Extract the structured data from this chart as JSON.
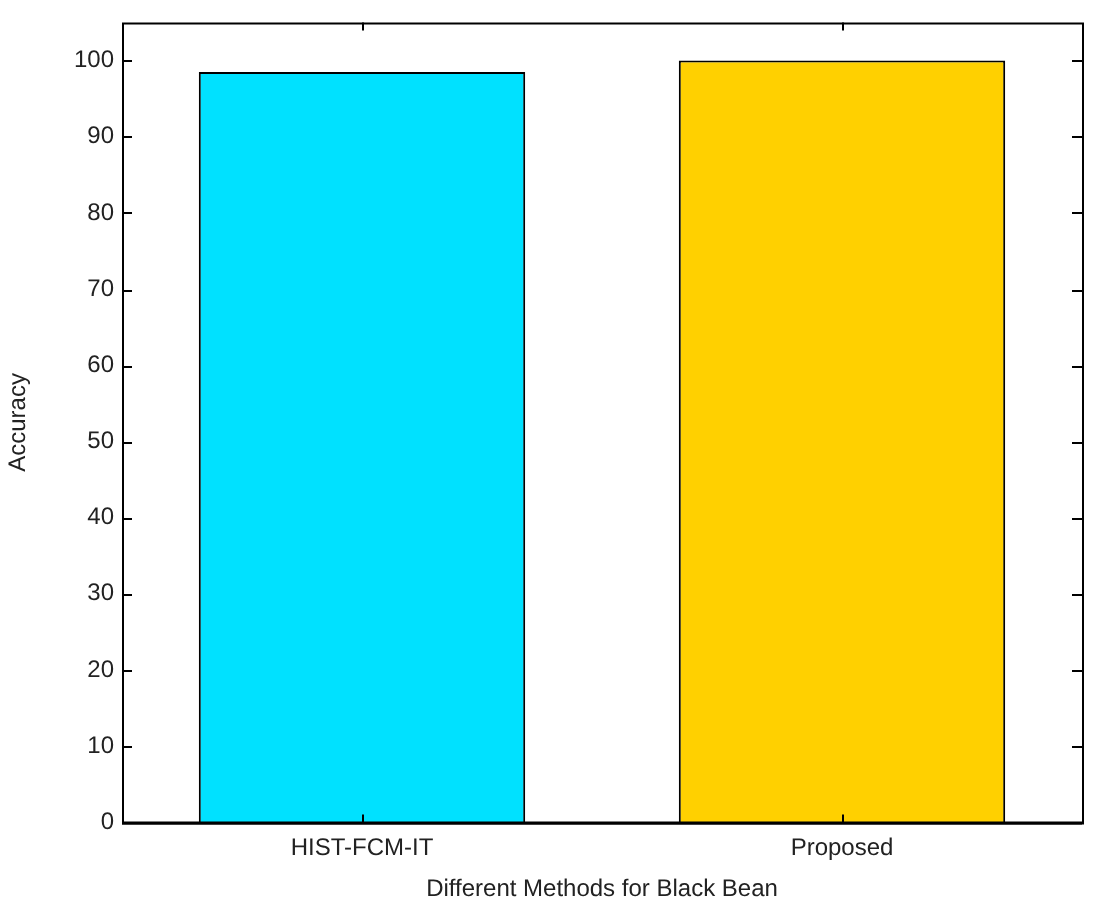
{
  "chart_data": {
    "type": "bar",
    "xlabel": "Different Methods for Black Bean",
    "ylabel": "Accuracy",
    "categories": [
      "HIST-FCM-IT",
      "Proposed"
    ],
    "values": [
      98.5,
      100
    ],
    "colors": [
      "#00e1ff",
      "#ffd000"
    ],
    "ylim": [
      0,
      105
    ],
    "yticks": [
      0,
      10,
      20,
      30,
      40,
      50,
      60,
      70,
      80,
      90,
      100
    ],
    "grid": false,
    "legend": false
  }
}
